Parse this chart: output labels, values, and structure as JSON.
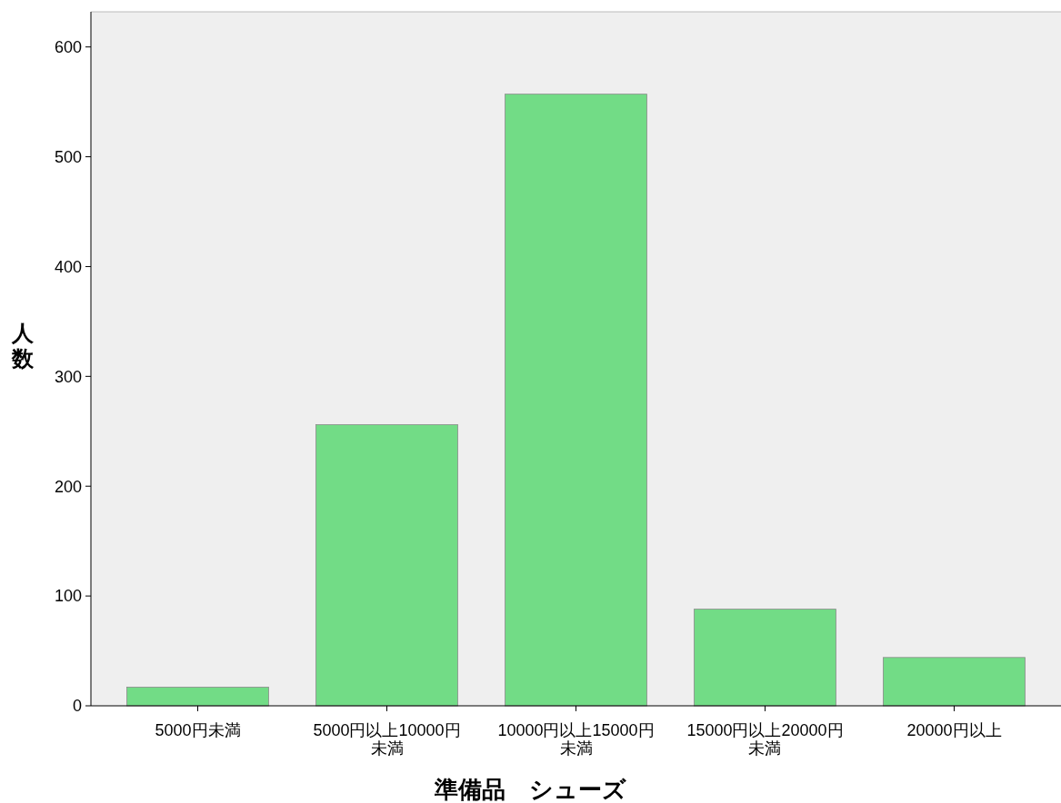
{
  "chart_data": {
    "type": "bar",
    "xlabel": "準備品　シューズ",
    "ylabel": "人数",
    "categories": [
      "5000円未満",
      "5000円以上10000円未満",
      "10000円以上15000円未満",
      "15000円以上20000円未満",
      "20000円以上"
    ],
    "values": [
      17,
      256,
      557,
      88,
      44
    ],
    "color": "#72dc86",
    "ylim": [
      0,
      632
    ],
    "yticks": [
      0,
      100,
      200,
      300,
      400,
      500,
      600
    ],
    "grid": false
  }
}
